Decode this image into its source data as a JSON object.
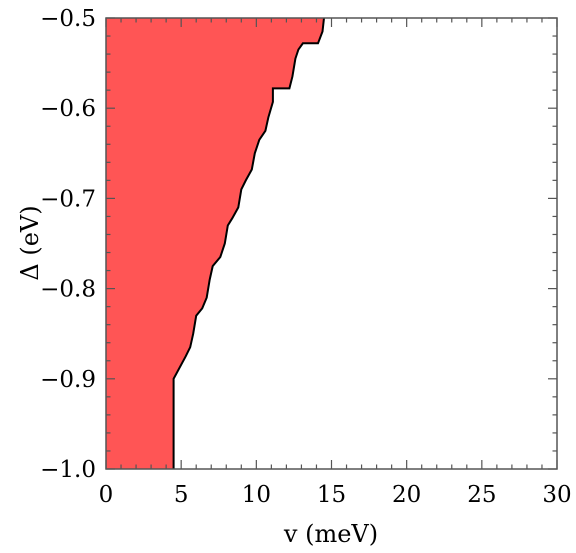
{
  "chart_data": {
    "type": "area",
    "xlabel": "v (meV)",
    "ylabel": "Δ (eV)",
    "xlim": [
      0,
      30
    ],
    "ylim": [
      -1.0,
      -0.5
    ],
    "x_ticks": [
      0,
      5,
      10,
      15,
      20,
      25,
      30
    ],
    "y_ticks": [
      -0.5,
      -0.6,
      -0.7,
      -0.8,
      -0.9,
      -1.0
    ],
    "x_tick_labels": [
      "0",
      "5",
      "10",
      "15",
      "20",
      "25",
      "30"
    ],
    "y_tick_labels": [
      "−0.5",
      "−0.6",
      "−0.7",
      "−0.8",
      "−0.9",
      "−1.0"
    ],
    "grid": false,
    "fill_color": "#ff5555",
    "boundary": [
      {
        "x": 4.5,
        "y": -1.0
      },
      {
        "x": 4.5,
        "y": -0.9
      },
      {
        "x": 5.3,
        "y": -0.875
      },
      {
        "x": 5.6,
        "y": -0.865
      },
      {
        "x": 5.8,
        "y": -0.85
      },
      {
        "x": 6.0,
        "y": -0.83
      },
      {
        "x": 6.4,
        "y": -0.822
      },
      {
        "x": 6.7,
        "y": -0.81
      },
      {
        "x": 6.9,
        "y": -0.79
      },
      {
        "x": 7.1,
        "y": -0.775
      },
      {
        "x": 7.6,
        "y": -0.765
      },
      {
        "x": 7.9,
        "y": -0.75
      },
      {
        "x": 8.1,
        "y": -0.73
      },
      {
        "x": 8.4,
        "y": -0.722
      },
      {
        "x": 8.8,
        "y": -0.71
      },
      {
        "x": 9.0,
        "y": -0.69
      },
      {
        "x": 9.3,
        "y": -0.68
      },
      {
        "x": 9.7,
        "y": -0.668
      },
      {
        "x": 9.9,
        "y": -0.65
      },
      {
        "x": 10.2,
        "y": -0.635
      },
      {
        "x": 10.6,
        "y": -0.625
      },
      {
        "x": 10.8,
        "y": -0.61
      },
      {
        "x": 11.1,
        "y": -0.593
      },
      {
        "x": 11.1,
        "y": -0.578
      },
      {
        "x": 12.2,
        "y": -0.578
      },
      {
        "x": 12.4,
        "y": -0.565
      },
      {
        "x": 12.6,
        "y": -0.545
      },
      {
        "x": 12.8,
        "y": -0.535
      },
      {
        "x": 13.1,
        "y": -0.528
      },
      {
        "x": 14.1,
        "y": -0.528
      },
      {
        "x": 14.4,
        "y": -0.515
      },
      {
        "x": 14.5,
        "y": -0.5
      }
    ]
  }
}
